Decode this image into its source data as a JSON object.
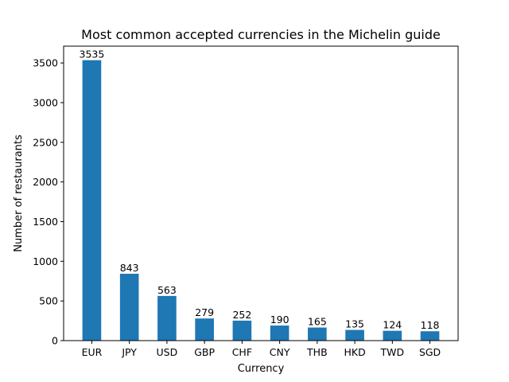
{
  "chart_data": {
    "type": "bar",
    "title": "Most common accepted currencies in the Michelin guide",
    "xlabel": "Currency",
    "ylabel": "Number of restaurants",
    "categories": [
      "EUR",
      "JPY",
      "USD",
      "GBP",
      "CHF",
      "CNY",
      "THB",
      "HKD",
      "TWD",
      "SGD"
    ],
    "values": [
      3535,
      843,
      563,
      279,
      252,
      190,
      165,
      135,
      124,
      118
    ],
    "ylim": [
      0,
      3711.75
    ],
    "yticks": [
      0,
      500,
      1000,
      1500,
      2000,
      2500,
      3000,
      3500
    ],
    "grid": false,
    "legend": "none",
    "bar_color": "#1f77b4",
    "data_labels": true
  }
}
